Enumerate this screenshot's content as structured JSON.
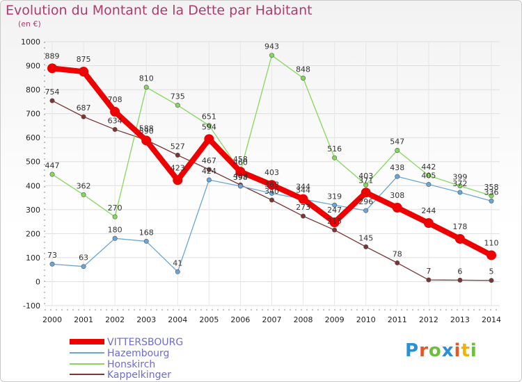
{
  "header": {
    "title": "Evolution du Montant de la Dette par Habitant",
    "unit": "(en €)"
  },
  "logo": {
    "text": "Proxiti",
    "colors": [
      "#2a8fd6",
      "#e0582a",
      "#6cbf3a",
      "#2a8fd6",
      "#e0582a",
      "#f0b400",
      "#6cbf3a"
    ]
  },
  "chart_data": {
    "type": "line",
    "title": "Evolution du Montant de la Dette par Habitant",
    "ylabel": "(en €)",
    "ylim": [
      -100,
      1000
    ],
    "yticks": [
      -100,
      0,
      100,
      200,
      300,
      400,
      500,
      600,
      700,
      800,
      900,
      1000
    ],
    "grid": true,
    "legend_position": "bottom-left",
    "x": [
      "2000",
      "2001",
      "2002",
      "2003",
      "2004",
      "2005",
      "2006",
      "2007",
      "2008",
      "2009",
      "2010",
      "2011",
      "2012",
      "2013",
      "2014"
    ],
    "series": [
      {
        "name": "VITTERSBOURG",
        "color": "#ee0000",
        "width": 8,
        "values": [
          889,
          875,
          708,
          588,
          423,
          594,
          458,
          403,
          344,
          247,
          371,
          308,
          244,
          178,
          110
        ]
      },
      {
        "name": "Hazembourg",
        "color": "#6aa5d8",
        "width": 1.3,
        "values": [
          73,
          63,
          180,
          168,
          41,
          424,
          398,
          368,
          344,
          319,
          296,
          438,
          405,
          372,
          336
        ]
      },
      {
        "name": "Honskirch",
        "color": "#85d85b",
        "width": 1.3,
        "values": [
          447,
          362,
          270,
          810,
          735,
          651,
          460,
          943,
          848,
          516,
          403,
          547,
          442,
          399,
          358
        ]
      },
      {
        "name": "Kappelkinger",
        "color": "#7d3434",
        "width": 1.3,
        "values": [
          754,
          687,
          634,
          590,
          527,
          467,
          403,
          340,
          273,
          215,
          145,
          78,
          7,
          6,
          5
        ]
      }
    ]
  }
}
